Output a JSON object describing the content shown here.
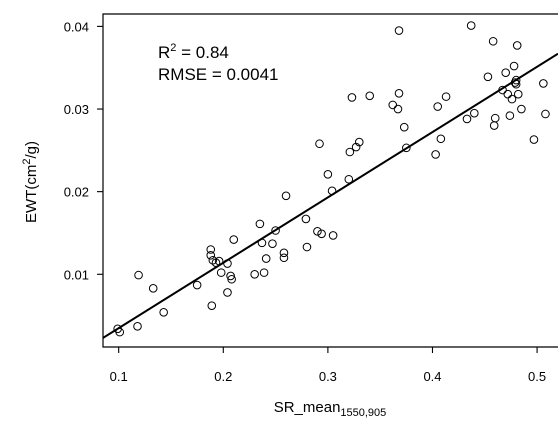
{
  "chart_data": {
    "type": "scatter",
    "ylabel_prefix": "EWT(cm",
    "ylabel_sup": "2",
    "ylabel_suffix": "/g)",
    "xlabel_main": "SR_mean",
    "xlabel_sub": "1550,905",
    "xlim": [
      0.085,
      0.52
    ],
    "ylim": [
      0.0012,
      0.0415
    ],
    "xticks": [
      0.1,
      0.2,
      0.3,
      0.4,
      0.5
    ],
    "yticks": [
      0.01,
      0.02,
      0.03,
      0.04
    ],
    "xtick_labels": [
      "0.1",
      "0.2",
      "0.3",
      "0.4",
      "0.5"
    ],
    "ytick_labels": [
      "0.01",
      "0.02",
      "0.03",
      "0.04"
    ],
    "grid": false,
    "annotation": {
      "r2_prefix": "R",
      "r2_sup": "2",
      "r2_value": " = 0.84",
      "rmse": "RMSE = 0.0041"
    },
    "fit_line": {
      "x": [
        0.085,
        0.52
      ],
      "y": [
        0.0023,
        0.0367
      ]
    },
    "points": [
      {
        "x": 0.099,
        "y": 0.0034
      },
      {
        "x": 0.101,
        "y": 0.003
      },
      {
        "x": 0.118,
        "y": 0.0037
      },
      {
        "x": 0.119,
        "y": 0.0099
      },
      {
        "x": 0.133,
        "y": 0.0083
      },
      {
        "x": 0.143,
        "y": 0.0054
      },
      {
        "x": 0.175,
        "y": 0.0087
      },
      {
        "x": 0.188,
        "y": 0.013
      },
      {
        "x": 0.188,
        "y": 0.0123
      },
      {
        "x": 0.189,
        "y": 0.0062
      },
      {
        "x": 0.19,
        "y": 0.0117
      },
      {
        "x": 0.193,
        "y": 0.0114
      },
      {
        "x": 0.196,
        "y": 0.0116
      },
      {
        "x": 0.198,
        "y": 0.0102
      },
      {
        "x": 0.204,
        "y": 0.0078
      },
      {
        "x": 0.204,
        "y": 0.0113
      },
      {
        "x": 0.207,
        "y": 0.0098
      },
      {
        "x": 0.208,
        "y": 0.0094
      },
      {
        "x": 0.21,
        "y": 0.0142
      },
      {
        "x": 0.23,
        "y": 0.01
      },
      {
        "x": 0.235,
        "y": 0.0161
      },
      {
        "x": 0.237,
        "y": 0.0138
      },
      {
        "x": 0.239,
        "y": 0.0102
      },
      {
        "x": 0.241,
        "y": 0.0119
      },
      {
        "x": 0.247,
        "y": 0.0137
      },
      {
        "x": 0.25,
        "y": 0.0153
      },
      {
        "x": 0.258,
        "y": 0.0126
      },
      {
        "x": 0.258,
        "y": 0.012
      },
      {
        "x": 0.26,
        "y": 0.0195
      },
      {
        "x": 0.279,
        "y": 0.0167
      },
      {
        "x": 0.28,
        "y": 0.0133
      },
      {
        "x": 0.29,
        "y": 0.0152
      },
      {
        "x": 0.292,
        "y": 0.0258
      },
      {
        "x": 0.294,
        "y": 0.0149
      },
      {
        "x": 0.3,
        "y": 0.0221
      },
      {
        "x": 0.304,
        "y": 0.0201
      },
      {
        "x": 0.305,
        "y": 0.0147
      },
      {
        "x": 0.32,
        "y": 0.0215
      },
      {
        "x": 0.321,
        "y": 0.0248
      },
      {
        "x": 0.323,
        "y": 0.0314
      },
      {
        "x": 0.327,
        "y": 0.0254
      },
      {
        "x": 0.33,
        "y": 0.026
      },
      {
        "x": 0.34,
        "y": 0.0316
      },
      {
        "x": 0.362,
        "y": 0.0305
      },
      {
        "x": 0.367,
        "y": 0.03
      },
      {
        "x": 0.368,
        "y": 0.0319
      },
      {
        "x": 0.368,
        "y": 0.0395
      },
      {
        "x": 0.373,
        "y": 0.0278
      },
      {
        "x": 0.375,
        "y": 0.0253
      },
      {
        "x": 0.403,
        "y": 0.0245
      },
      {
        "x": 0.405,
        "y": 0.0303
      },
      {
        "x": 0.408,
        "y": 0.0264
      },
      {
        "x": 0.413,
        "y": 0.0315
      },
      {
        "x": 0.433,
        "y": 0.0288
      },
      {
        "x": 0.437,
        "y": 0.0401
      },
      {
        "x": 0.44,
        "y": 0.0295
      },
      {
        "x": 0.453,
        "y": 0.0339
      },
      {
        "x": 0.458,
        "y": 0.0382
      },
      {
        "x": 0.459,
        "y": 0.028
      },
      {
        "x": 0.46,
        "y": 0.0289
      },
      {
        "x": 0.467,
        "y": 0.0323
      },
      {
        "x": 0.47,
        "y": 0.0344
      },
      {
        "x": 0.472,
        "y": 0.0318
      },
      {
        "x": 0.474,
        "y": 0.0292
      },
      {
        "x": 0.476,
        "y": 0.0312
      },
      {
        "x": 0.478,
        "y": 0.0352
      },
      {
        "x": 0.479,
        "y": 0.0332
      },
      {
        "x": 0.48,
        "y": 0.033
      },
      {
        "x": 0.48,
        "y": 0.0335
      },
      {
        "x": 0.481,
        "y": 0.0377
      },
      {
        "x": 0.482,
        "y": 0.0318
      },
      {
        "x": 0.485,
        "y": 0.03
      },
      {
        "x": 0.497,
        "y": 0.0263
      },
      {
        "x": 0.506,
        "y": 0.0331
      },
      {
        "x": 0.508,
        "y": 0.0294
      }
    ]
  }
}
